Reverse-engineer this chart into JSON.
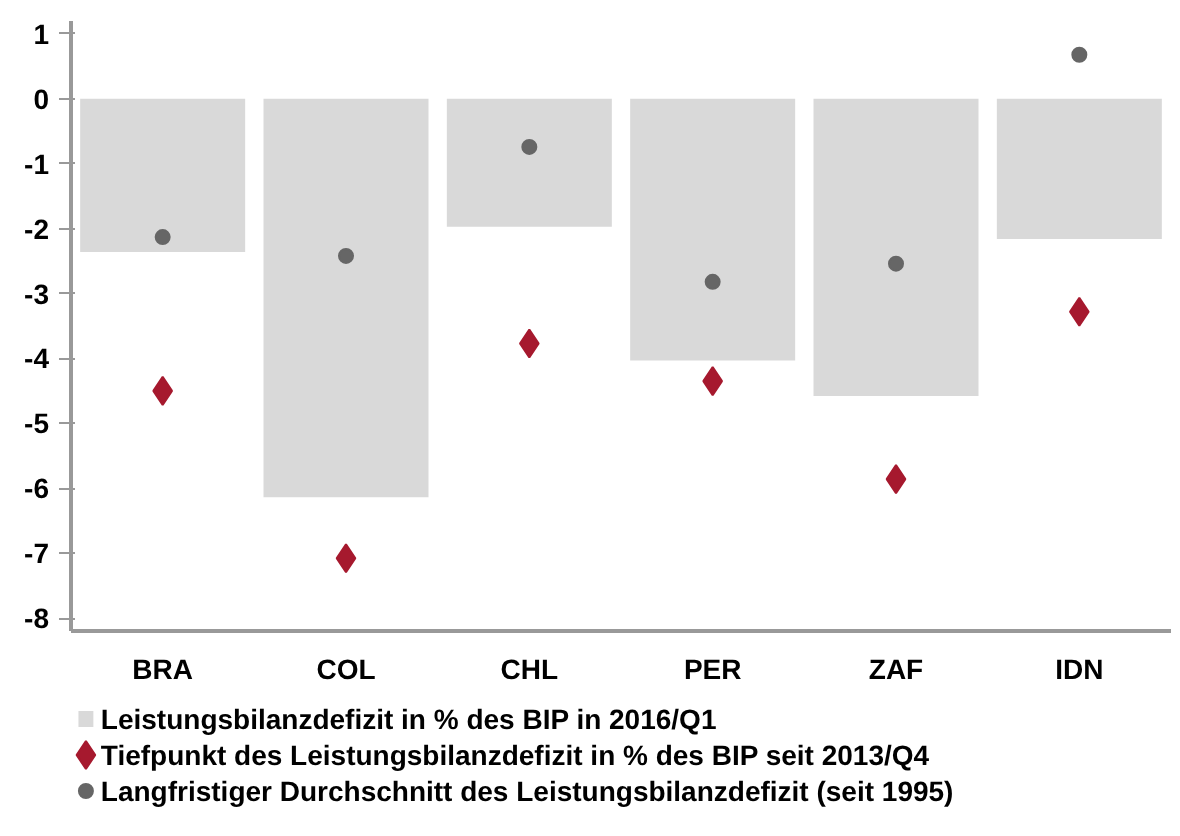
{
  "chart_data": {
    "type": "bar",
    "categories": [
      "BRA",
      "COL",
      "CHL",
      "PER",
      "ZAF",
      "IDN"
    ],
    "series": [
      {
        "name": "Leistungsbilanzdefizit in % des BIP in 2016/Q1",
        "color": "#d9d9d9",
        "values": [
          -2.36,
          -6.14,
          -1.97,
          -4.03,
          -4.58,
          -2.16
        ]
      },
      {
        "name": "Tiefpunkt des Leistungsbilanzdefizit in % des BIP seit 2013/Q4",
        "type": "scatter",
        "marker": "diamond",
        "color": "#a6192e",
        "values": [
          -4.5,
          -7.08,
          -3.77,
          -4.35,
          -5.86,
          -3.28
        ]
      },
      {
        "name": "Langfristiger Durchschnitt des Leistungsbilanzdefizit (seit 1995)",
        "type": "scatter",
        "marker": "circle",
        "color": "#666666",
        "values": [
          -2.13,
          -2.42,
          -0.74,
          -2.82,
          -2.54,
          0.68
        ]
      }
    ],
    "ylim": [
      -8.2,
      1.2
    ],
    "yticks": [
      -8,
      -7,
      -6,
      -5,
      -4,
      -3,
      -2,
      -1,
      0,
      1
    ],
    "grid": false,
    "legend": "bottom"
  }
}
